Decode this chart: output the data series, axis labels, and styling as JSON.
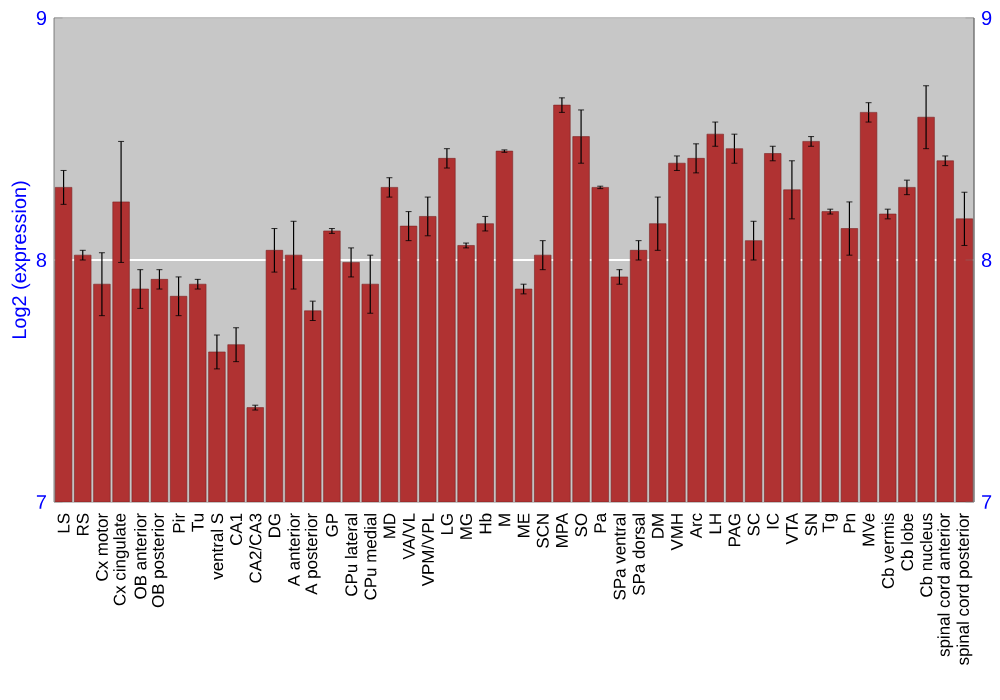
{
  "chart_data": {
    "type": "bar",
    "ylabel": "Log2 (expression)",
    "categories": [
      "LS",
      "RS",
      "Cx motor",
      "Cx cingulate",
      "OB anterior",
      "OB posterior",
      "Pir",
      "Tu",
      "ventral S",
      "CA1",
      "CA2/CA3",
      "DG",
      "A anterior",
      "A posterior",
      "GP",
      "CPu lateral",
      "CPu medial",
      "MD",
      "VA/VL",
      "VPM/VPL",
      "LG",
      "MG",
      "Hb",
      "M",
      "ME",
      "SCN",
      "MPA",
      "SO",
      "Pa",
      "SPa ventral",
      "SPa dorsal",
      "DM",
      "VMH",
      "Arc",
      "LH",
      "PAG",
      "SC",
      "IC",
      "VTA",
      "SN",
      "Tg",
      "Pn",
      "MVe",
      "Cb vermis",
      "Cb lobe",
      "Cb nucleus",
      "spinal cord anterior",
      "spinal cord posterior"
    ],
    "values": [
      8.3,
      8.02,
      7.9,
      8.24,
      7.88,
      7.92,
      7.85,
      7.9,
      7.62,
      7.65,
      7.39,
      8.04,
      8.02,
      7.79,
      8.12,
      7.99,
      7.9,
      8.3,
      8.14,
      8.18,
      8.42,
      8.06,
      8.15,
      8.45,
      7.88,
      8.02,
      8.64,
      8.51,
      8.3,
      7.93,
      8.04,
      8.15,
      8.4,
      8.42,
      8.52,
      8.46,
      8.08,
      8.44,
      8.29,
      8.49,
      8.2,
      8.13,
      8.61,
      8.19,
      8.3,
      8.59,
      8.41,
      8.17
    ],
    "errors": [
      0.07,
      0.02,
      0.13,
      0.25,
      0.08,
      0.04,
      0.08,
      0.02,
      0.07,
      0.07,
      0.01,
      0.09,
      0.14,
      0.04,
      0.01,
      0.06,
      0.12,
      0.04,
      0.06,
      0.08,
      0.04,
      0.01,
      0.03,
      0.005,
      0.02,
      0.06,
      0.03,
      0.11,
      0.005,
      0.03,
      0.04,
      0.11,
      0.03,
      0.06,
      0.05,
      0.06,
      0.08,
      0.03,
      0.12,
      0.02,
      0.01,
      0.11,
      0.04,
      0.02,
      0.03,
      0.13,
      0.02,
      0.11
    ],
    "color": "#b03232",
    "ylim": [
      7,
      9
    ],
    "yticks": [
      7,
      8,
      9
    ],
    "y2lim": [
      7,
      9
    ],
    "y2ticks": [
      7,
      8,
      9
    ],
    "grid": "y"
  }
}
